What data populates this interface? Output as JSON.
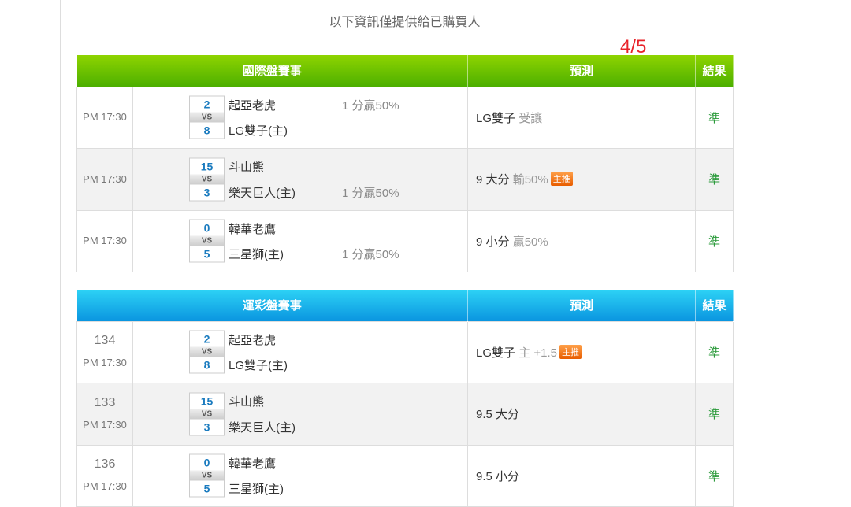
{
  "notice": "以下資訊僅提供給已購買人",
  "rating": "4/5",
  "colors": {
    "green_header": "#5cb800",
    "blue_header": "#0fa3e6",
    "result": "#2a9a3a",
    "rating": "#e8232a",
    "badge": "#f07a1a"
  },
  "vs_label": "VS",
  "tables": [
    {
      "headers": [
        "國際盤賽事",
        "預測",
        "結果"
      ],
      "rows": [
        {
          "id": "",
          "time": "PM 17:30",
          "score1": "2",
          "score2": "8",
          "team1": "起亞老虎",
          "team2": "LG雙子(主)",
          "handicap1": "1 分贏50%",
          "handicap2": "",
          "pred": "LG雙子",
          "pred_sub": "受讓",
          "badge": "",
          "result": "準"
        },
        {
          "id": "",
          "time": "PM 17:30",
          "score1": "15",
          "score2": "3",
          "team1": "斗山熊",
          "team2": "樂天巨人(主)",
          "handicap1": "",
          "handicap2": "1 分贏50%",
          "pred": "9 大分",
          "pred_sub": "輸50%",
          "badge": "主推",
          "result": "準"
        },
        {
          "id": "",
          "time": "PM 17:30",
          "score1": "0",
          "score2": "5",
          "team1": "韓華老鷹",
          "team2": "三星獅(主)",
          "handicap1": "",
          "handicap2": "1 分贏50%",
          "pred": "9 小分",
          "pred_sub": "贏50%",
          "badge": "",
          "result": "準"
        }
      ]
    },
    {
      "headers": [
        "運彩盤賽事",
        "預測",
        "結果"
      ],
      "rows": [
        {
          "id": "134",
          "time": "PM 17:30",
          "score1": "2",
          "score2": "8",
          "team1": "起亞老虎",
          "team2": "LG雙子(主)",
          "handicap1": "",
          "handicap2": "",
          "pred": "LG雙子",
          "pred_sub": "主 +1.5",
          "badge": "主推",
          "result": "準"
        },
        {
          "id": "133",
          "time": "PM 17:30",
          "score1": "15",
          "score2": "3",
          "team1": "斗山熊",
          "team2": "樂天巨人(主)",
          "handicap1": "",
          "handicap2": "",
          "pred": "9.5 大分",
          "pred_sub": "",
          "badge": "",
          "result": "準"
        },
        {
          "id": "136",
          "time": "PM 17:30",
          "score1": "0",
          "score2": "5",
          "team1": "韓華老鷹",
          "team2": "三星獅(主)",
          "handicap1": "",
          "handicap2": "",
          "pred": "9.5 小分",
          "pred_sub": "",
          "badge": "",
          "result": "準"
        }
      ]
    }
  ]
}
